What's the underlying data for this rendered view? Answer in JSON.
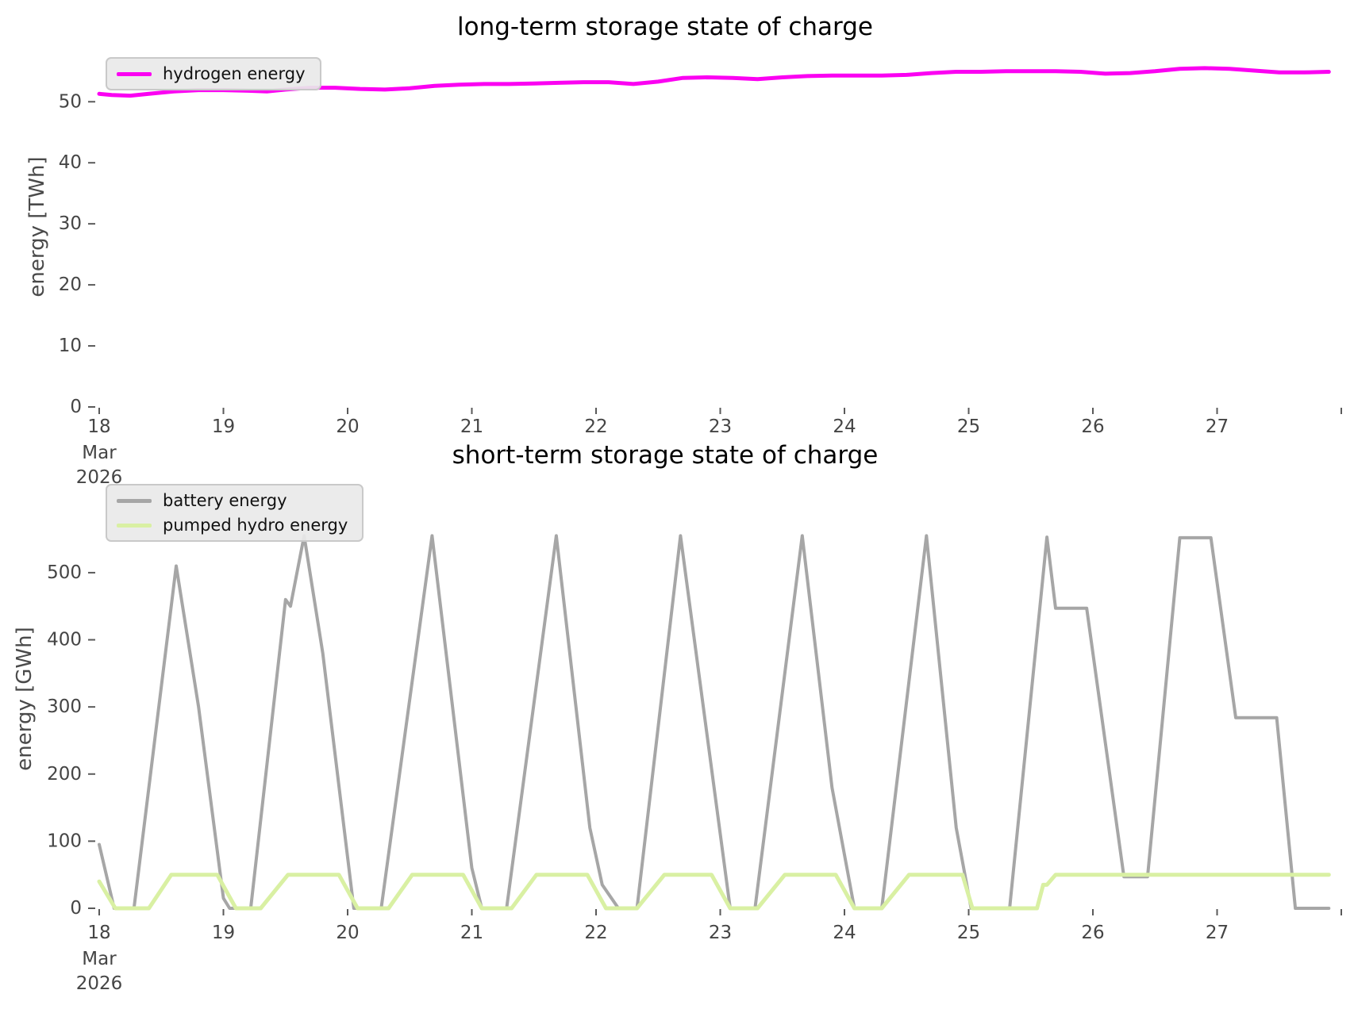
{
  "chart_data": [
    {
      "type": "line",
      "title": "long-term storage state of charge",
      "ylabel": "energy [TWh]",
      "xlabel": "",
      "ylim": [
        0,
        59
      ],
      "xlim_days": [
        18,
        28
      ],
      "grid": false,
      "legend_position": "upper left",
      "xtick_labels": [
        "18",
        "19",
        "20",
        "21",
        "22",
        "23",
        "24",
        "25",
        "26",
        "27"
      ],
      "xsub_month": "Mar",
      "xsub_year": "2026",
      "ytick_values": [
        0,
        10,
        20,
        30,
        40,
        50
      ],
      "series": [
        {
          "name": "hydrogen energy",
          "color": "#fb00f2",
          "unit": "TWh",
          "points": [
            [
              18.0,
              51.3
            ],
            [
              18.1,
              51.1
            ],
            [
              18.25,
              51.0
            ],
            [
              18.4,
              51.3
            ],
            [
              18.6,
              51.7
            ],
            [
              18.8,
              51.9
            ],
            [
              19.0,
              51.9
            ],
            [
              19.2,
              51.8
            ],
            [
              19.35,
              51.7
            ],
            [
              19.5,
              52.0
            ],
            [
              19.7,
              52.3
            ],
            [
              19.9,
              52.3
            ],
            [
              20.1,
              52.1
            ],
            [
              20.3,
              52.0
            ],
            [
              20.5,
              52.2
            ],
            [
              20.7,
              52.6
            ],
            [
              20.9,
              52.8
            ],
            [
              21.1,
              52.9
            ],
            [
              21.3,
              52.9
            ],
            [
              21.5,
              53.0
            ],
            [
              21.7,
              53.1
            ],
            [
              21.9,
              53.2
            ],
            [
              22.1,
              53.2
            ],
            [
              22.3,
              52.9
            ],
            [
              22.5,
              53.3
            ],
            [
              22.7,
              53.9
            ],
            [
              22.9,
              54.0
            ],
            [
              23.1,
              53.9
            ],
            [
              23.3,
              53.7
            ],
            [
              23.5,
              54.0
            ],
            [
              23.7,
              54.2
            ],
            [
              23.9,
              54.3
            ],
            [
              24.1,
              54.3
            ],
            [
              24.3,
              54.3
            ],
            [
              24.5,
              54.4
            ],
            [
              24.7,
              54.7
            ],
            [
              24.9,
              54.9
            ],
            [
              25.1,
              54.9
            ],
            [
              25.3,
              55.0
            ],
            [
              25.5,
              55.0
            ],
            [
              25.7,
              55.0
            ],
            [
              25.9,
              54.9
            ],
            [
              26.1,
              54.6
            ],
            [
              26.3,
              54.7
            ],
            [
              26.5,
              55.0
            ],
            [
              26.7,
              55.4
            ],
            [
              26.9,
              55.5
            ],
            [
              27.1,
              55.4
            ],
            [
              27.3,
              55.1
            ],
            [
              27.5,
              54.8
            ],
            [
              27.7,
              54.8
            ],
            [
              27.9,
              54.9
            ]
          ]
        }
      ]
    },
    {
      "type": "line",
      "title": "short-term storage state of charge",
      "ylabel": "energy [GWh]",
      "xlabel": "",
      "ylim": [
        0,
        624
      ],
      "xlim_days": [
        18,
        28
      ],
      "grid": false,
      "legend_position": "upper left",
      "xtick_labels": [
        "18",
        "19",
        "20",
        "21",
        "22",
        "23",
        "24",
        "25",
        "26",
        "27"
      ],
      "xsub_month": "Mar",
      "xsub_year": "2026",
      "ytick_values": [
        0,
        100,
        200,
        300,
        400,
        500
      ],
      "series": [
        {
          "name": "battery energy",
          "color": "#a6a6a6",
          "unit": "GWh",
          "points": [
            [
              18.0,
              95
            ],
            [
              18.12,
              0
            ],
            [
              18.28,
              0
            ],
            [
              18.62,
              510
            ],
            [
              18.8,
              300
            ],
            [
              19.0,
              15
            ],
            [
              19.05,
              0
            ],
            [
              19.22,
              0
            ],
            [
              19.5,
              460
            ],
            [
              19.54,
              450
            ],
            [
              19.65,
              555
            ],
            [
              19.8,
              380
            ],
            [
              20.05,
              0
            ],
            [
              20.27,
              0
            ],
            [
              20.68,
              555
            ],
            [
              21.0,
              60
            ],
            [
              21.08,
              0
            ],
            [
              21.28,
              0
            ],
            [
              21.68,
              555
            ],
            [
              21.95,
              120
            ],
            [
              22.05,
              35
            ],
            [
              22.18,
              0
            ],
            [
              22.33,
              0
            ],
            [
              22.68,
              555
            ],
            [
              22.9,
              250
            ],
            [
              23.08,
              0
            ],
            [
              23.28,
              0
            ],
            [
              23.66,
              555
            ],
            [
              23.9,
              180
            ],
            [
              24.08,
              0
            ],
            [
              24.3,
              0
            ],
            [
              24.66,
              555
            ],
            [
              24.9,
              120
            ],
            [
              25.02,
              0
            ],
            [
              25.33,
              0
            ],
            [
              25.63,
              553
            ],
            [
              25.7,
              447
            ],
            [
              25.95,
              447
            ],
            [
              26.25,
              47
            ],
            [
              26.44,
              47
            ],
            [
              26.7,
              552
            ],
            [
              26.95,
              552
            ],
            [
              27.15,
              284
            ],
            [
              27.48,
              284
            ],
            [
              27.63,
              0
            ],
            [
              27.9,
              0
            ]
          ]
        },
        {
          "name": "pumped hydro energy",
          "color": "#d9f0a3",
          "unit": "GWh",
          "points": [
            [
              18.0,
              40
            ],
            [
              18.13,
              0
            ],
            [
              18.4,
              0
            ],
            [
              18.58,
              50
            ],
            [
              18.95,
              50
            ],
            [
              19.1,
              0
            ],
            [
              19.3,
              0
            ],
            [
              19.52,
              50
            ],
            [
              19.93,
              50
            ],
            [
              20.08,
              0
            ],
            [
              20.33,
              0
            ],
            [
              20.52,
              50
            ],
            [
              20.93,
              50
            ],
            [
              21.08,
              0
            ],
            [
              21.32,
              0
            ],
            [
              21.52,
              50
            ],
            [
              21.93,
              50
            ],
            [
              22.08,
              0
            ],
            [
              22.33,
              0
            ],
            [
              22.55,
              50
            ],
            [
              22.93,
              50
            ],
            [
              23.08,
              0
            ],
            [
              23.3,
              0
            ],
            [
              23.52,
              50
            ],
            [
              23.93,
              50
            ],
            [
              24.08,
              0
            ],
            [
              24.3,
              0
            ],
            [
              24.52,
              50
            ],
            [
              24.95,
              50
            ],
            [
              25.03,
              0
            ],
            [
              25.55,
              0
            ],
            [
              25.6,
              35
            ],
            [
              25.63,
              35
            ],
            [
              25.7,
              50
            ],
            [
              27.9,
              50
            ]
          ]
        }
      ]
    }
  ]
}
